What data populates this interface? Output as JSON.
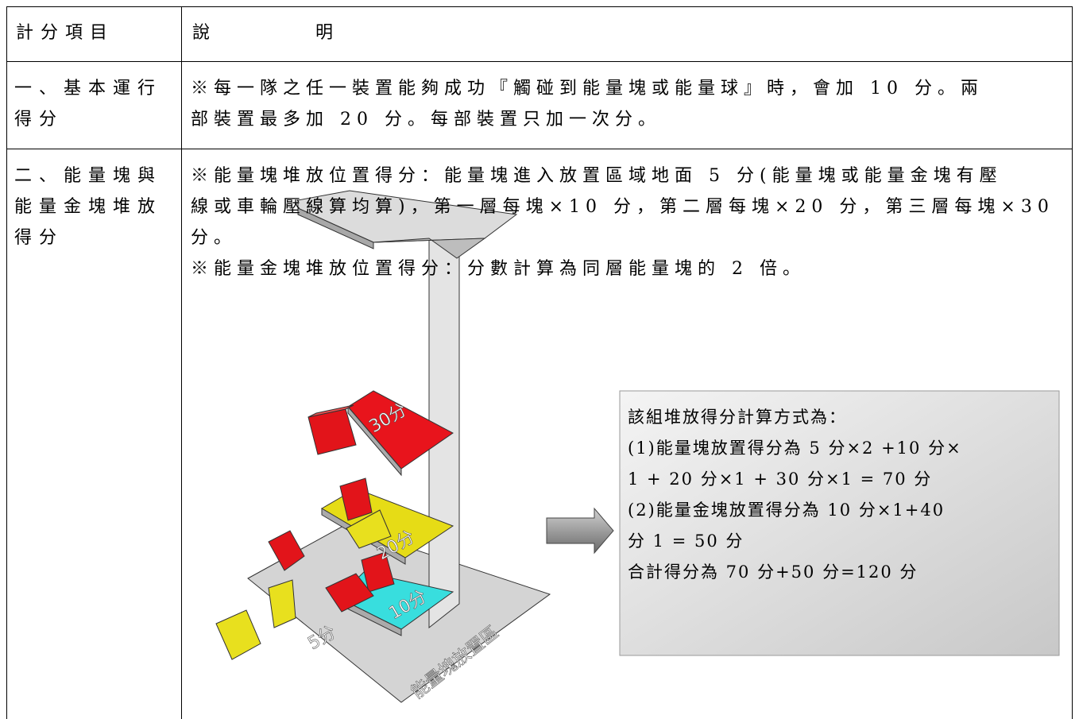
{
  "table": {
    "header": [
      "計分項目",
      "說　　　　明"
    ],
    "rows": [
      {
        "item": [
          "一、基本運行",
          "得分"
        ],
        "description": [
          "※每一隊之任一裝置能夠成功『觸碰到能量塊或能量球』時，會加 10 分。兩",
          "部裝置最多加 20 分。每部裝置只加一次分。"
        ]
      },
      {
        "item": [
          "二、能量塊與",
          "能量金塊堆放",
          "得分"
        ],
        "description": [
          "※能量塊堆放位置得分：能量塊進入放置區域地面 5 分(能量塊或能量金塊有壓",
          "線或車輪壓線算均算)，第一層每塊×10 分，第二層每塊×20 分，第三層每塊×30",
          "分。",
          "※能量金塊堆放位置得分：分數計算為同層能量塊的 2 倍。"
        ],
        "figure": {
          "labels": [
            "30分",
            "20分",
            "10分",
            "5分",
            "能量塊放置區"
          ]
        },
        "callout": [
          "該組堆放得分計算方式為：",
          "(1)能量塊放置得分為 5 分×2 +10 分×",
          "1 + 20 分×1 + 30 分×1 = 70 分",
          "(2)能量金塊放置得分為 10 分×1+40",
          "分 1 = 50 分",
          "合計得分為 70 分+50 分=120 分"
        ]
      }
    ]
  }
}
